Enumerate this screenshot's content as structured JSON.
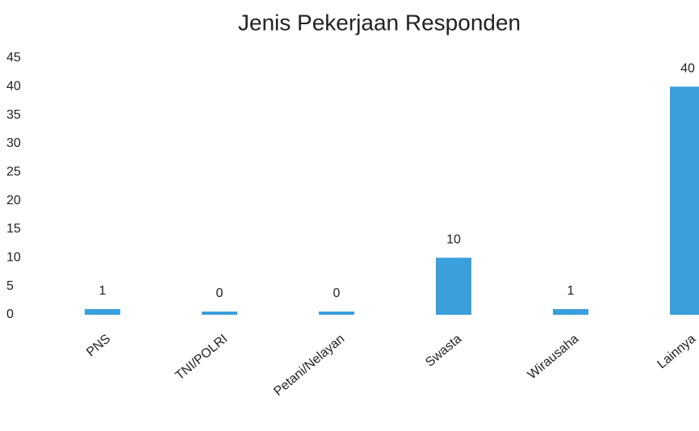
{
  "chart_data": {
    "type": "bar",
    "title": "Jenis Pekerjaan Responden",
    "categories": [
      "PNS",
      "TNI/POLRI",
      "Petani/Nelayan",
      "Swasta",
      "Wirausaha",
      "Lainnya"
    ],
    "values": [
      1,
      0,
      0,
      10,
      1,
      40
    ],
    "color": "#3b9fdc",
    "ylim": [
      0,
      45
    ],
    "yticks": [
      0,
      5,
      10,
      15,
      20,
      25,
      30,
      35,
      40,
      45
    ],
    "grid": false
  }
}
